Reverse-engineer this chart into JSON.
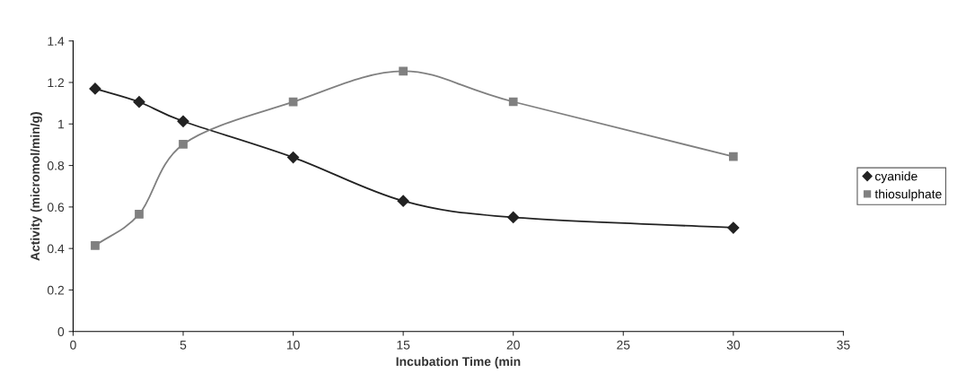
{
  "chart_data": {
    "type": "line",
    "xlabel": "Incubation Time (min",
    "ylabel": "Activity (micromol/min/g)",
    "x": [
      1,
      3,
      5,
      10,
      15,
      20,
      30
    ],
    "series": [
      {
        "name": "cyanide",
        "color": "#222222",
        "marker": "diamond",
        "values": [
          1.17,
          1.106,
          1.013,
          0.839,
          0.629,
          0.55,
          0.5
        ]
      },
      {
        "name": "thiosulphate",
        "color": "#808080",
        "marker": "square",
        "values": [
          0.414,
          0.565,
          0.902,
          1.106,
          1.254,
          1.107,
          0.843
        ]
      }
    ],
    "xlim": [
      0,
      35
    ],
    "xticks": [
      0,
      5,
      10,
      15,
      20,
      25,
      30,
      35
    ],
    "ylim": [
      0,
      1.4
    ],
    "yticks": [
      0,
      0.2,
      0.4,
      0.6,
      0.8,
      1,
      1.2,
      1.4
    ],
    "grid": false,
    "legend": "right",
    "line_style": "solid"
  }
}
